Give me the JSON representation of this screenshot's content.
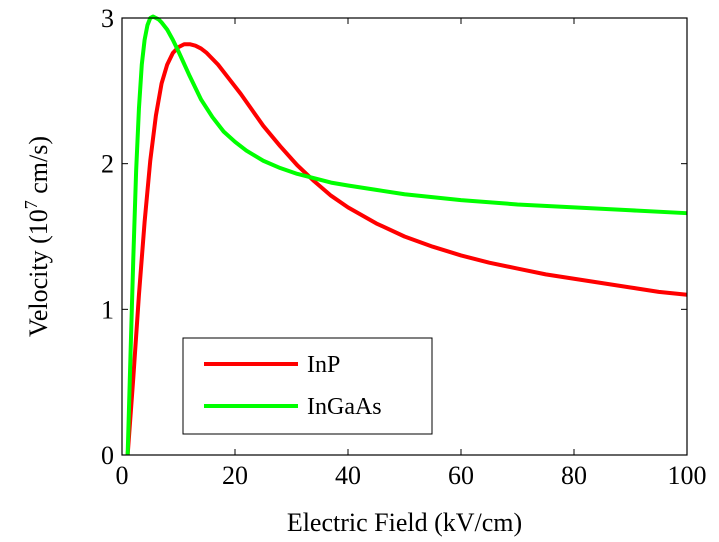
{
  "chart_data": {
    "type": "line",
    "xlabel": "Electric Field (kV/cm)",
    "ylabel": {
      "prefix": "Velocity (10",
      "exponent": "7",
      "suffix": " cm/s)"
    },
    "xlim": [
      0,
      100
    ],
    "ylim": [
      0,
      3
    ],
    "xticks": [
      0,
      20,
      40,
      60,
      80,
      100
    ],
    "yticks": [
      0,
      1,
      2,
      3
    ],
    "grid": false,
    "legend_position": "bottom-left",
    "series": [
      {
        "name": "InP",
        "color": "#ff0000",
        "x": [
          1,
          2,
          3,
          4,
          5,
          6,
          7,
          8,
          9,
          10,
          11,
          12,
          13,
          14,
          15,
          17,
          19,
          21,
          23,
          25,
          28,
          31,
          34,
          37,
          40,
          45,
          50,
          55,
          60,
          65,
          70,
          75,
          80,
          85,
          90,
          95,
          100
        ],
        "y": [
          0.0,
          0.53,
          1.1,
          1.6,
          2.02,
          2.33,
          2.55,
          2.68,
          2.76,
          2.8,
          2.82,
          2.82,
          2.81,
          2.79,
          2.76,
          2.68,
          2.58,
          2.48,
          2.37,
          2.26,
          2.12,
          1.99,
          1.88,
          1.78,
          1.7,
          1.59,
          1.5,
          1.43,
          1.37,
          1.32,
          1.28,
          1.24,
          1.21,
          1.18,
          1.15,
          1.12,
          1.1
        ]
      },
      {
        "name": "InGaAs",
        "color": "#00ff00",
        "x": [
          1,
          1.5,
          2,
          2.5,
          3,
          3.5,
          4,
          4.5,
          5,
          5.5,
          6,
          6.5,
          7,
          8,
          9,
          10,
          12,
          14,
          16,
          18,
          20,
          22,
          25,
          28,
          31,
          34,
          37,
          40,
          45,
          50,
          60,
          70,
          80,
          90,
          100
        ],
        "y": [
          0.0,
          0.68,
          1.35,
          1.95,
          2.38,
          2.68,
          2.85,
          2.95,
          3.0,
          3.01,
          3.0,
          2.99,
          2.97,
          2.92,
          2.85,
          2.77,
          2.6,
          2.44,
          2.32,
          2.22,
          2.15,
          2.09,
          2.02,
          1.97,
          1.93,
          1.9,
          1.87,
          1.85,
          1.82,
          1.79,
          1.75,
          1.72,
          1.7,
          1.68,
          1.66
        ]
      }
    ]
  }
}
